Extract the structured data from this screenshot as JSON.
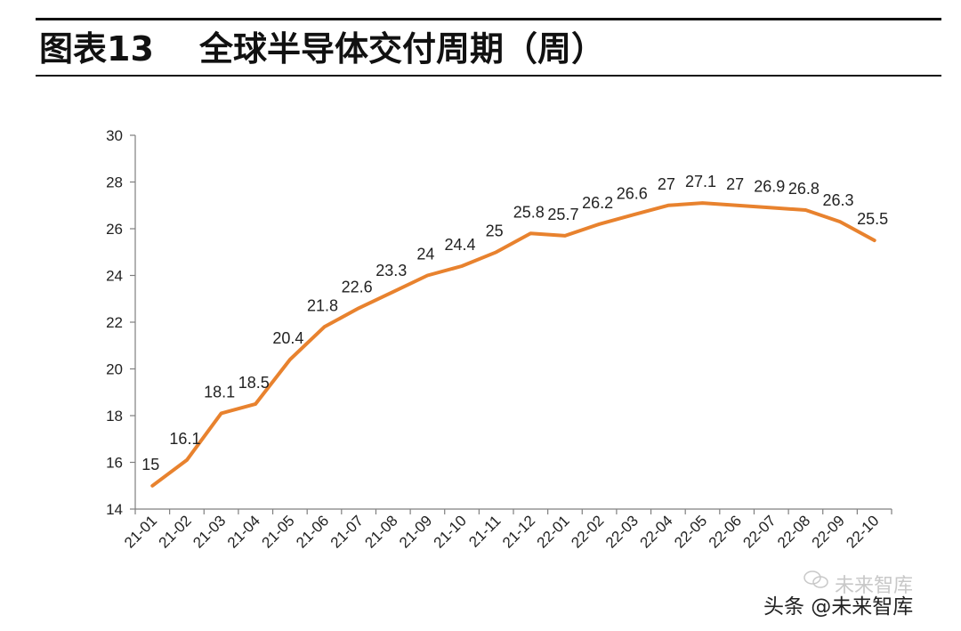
{
  "header": {
    "figure_label": "图表13",
    "title": "全球半导体交付周期（周）"
  },
  "watermark": {
    "text": "头条 @未来智库",
    "faint_text": "未来智库"
  },
  "colors": {
    "line": "#E8822E",
    "axis": "#7f7f7f",
    "text": "#222222"
  },
  "chart_data": {
    "type": "line",
    "title": "",
    "xlabel": "",
    "ylabel": "",
    "categories": [
      "21-01",
      "21-02",
      "21-03",
      "21-04",
      "21-05",
      "21-06",
      "21-07",
      "21-08",
      "21-09",
      "21-10",
      "21-11",
      "21-12",
      "22-01",
      "22-02",
      "22-03",
      "22-04",
      "22-05",
      "22-06",
      "22-07",
      "22-08",
      "22-09",
      "22-10"
    ],
    "values": [
      15,
      16.1,
      18.1,
      18.5,
      20.4,
      21.8,
      22.6,
      23.3,
      24,
      24.4,
      25,
      25.8,
      25.7,
      26.2,
      26.6,
      27,
      27.1,
      27,
      26.9,
      26.8,
      26.3,
      25.5
    ],
    "data_labels": [
      "15",
      "16.1",
      "18.1",
      "18.5",
      "20.4",
      "21.8",
      "22.6",
      "23.3",
      "24",
      "24.4",
      "25",
      "25.8",
      "25.7",
      "26.2",
      "26.6",
      "27",
      "27.1",
      "27",
      "26.9",
      "26.8",
      "26.3",
      "25.5"
    ],
    "ylim": [
      14,
      30
    ],
    "yticks": [
      14,
      16,
      18,
      20,
      22,
      24,
      26,
      28,
      30
    ],
    "ytick_labels": [
      "14",
      "16",
      "18",
      "20",
      "22",
      "24",
      "26",
      "28",
      "30"
    ],
    "grid": false,
    "legend": "none"
  }
}
